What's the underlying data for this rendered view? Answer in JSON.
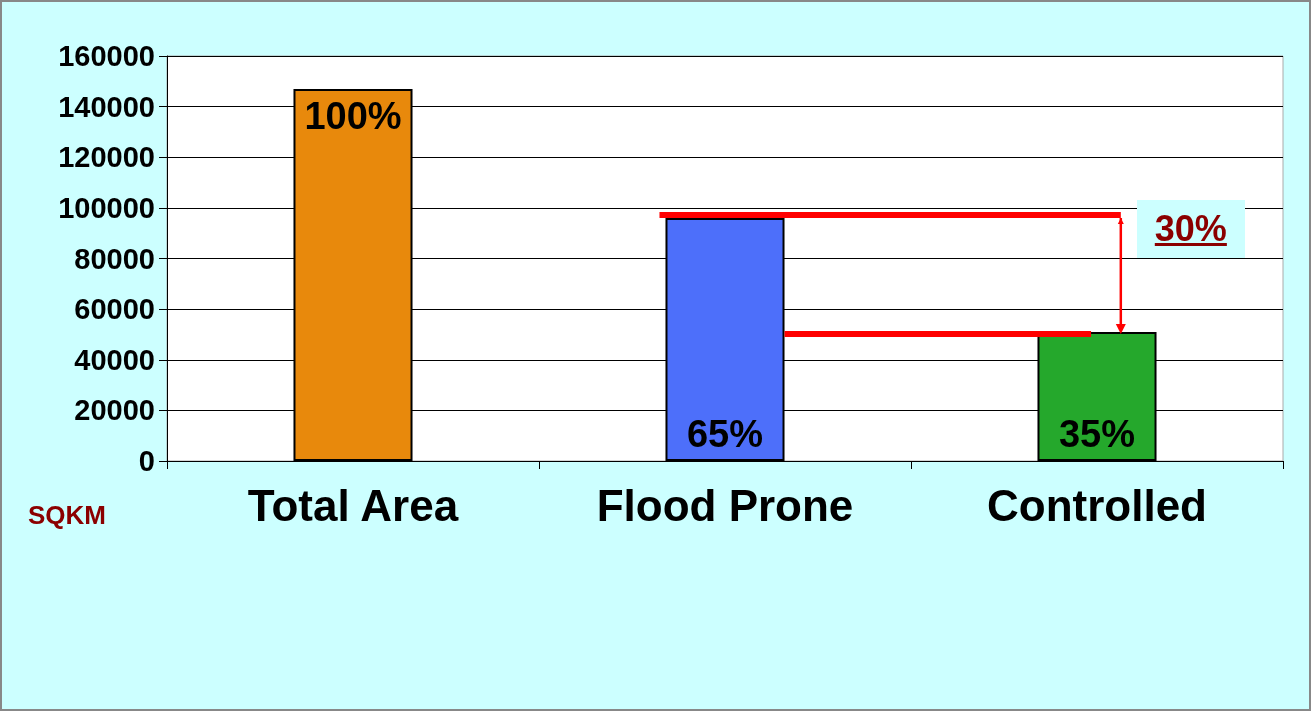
{
  "chart_data": {
    "type": "bar",
    "ylabel": "SQKM",
    "categories": [
      "Total Area",
      "Flood Prone",
      "Controlled"
    ],
    "values": [
      147000,
      96000,
      51000
    ],
    "colors": [
      "#e8890c",
      "#4d6ffa",
      "#25a82c"
    ],
    "ylim": [
      0,
      160000
    ],
    "yticks": [
      0,
      20000,
      40000,
      60000,
      80000,
      100000,
      120000,
      140000,
      160000
    ],
    "grid": "y",
    "annotations": [
      "100%",
      "65%",
      "35%",
      "30%"
    ]
  }
}
